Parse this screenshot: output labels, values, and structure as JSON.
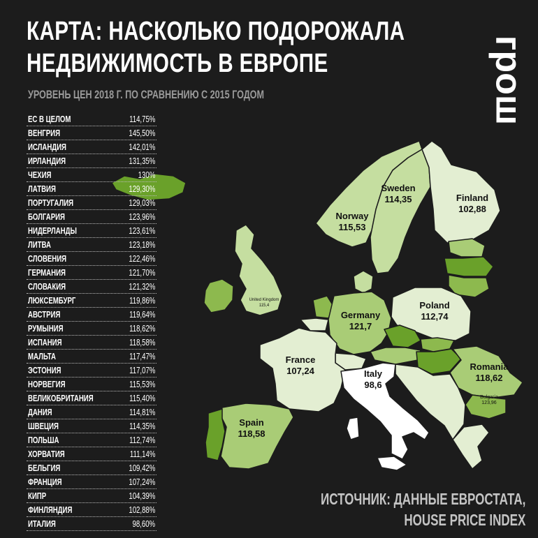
{
  "title_line1": "КАРТА: НАСКОЛЬКО ПОДОРОЖАЛА",
  "title_line2": "НЕДВИЖИМОСТЬ В ЕВРОПЕ",
  "subtitle": "УРОВЕНЬ ЦЕН 2018 Г. ПО СРАВНЕНИЮ С 2015 ГОДОМ",
  "logo": "грош",
  "source_line1": "ИСТОЧНИК: ДАННЫЕ ЕВРОСТАТА,",
  "source_line2": "HOUSE PRICE INDEX",
  "colors": {
    "background": "#1c1c1c",
    "highest": "#6aa12a",
    "high": "#8db94e",
    "upper": "#a9cc76",
    "medium": "#c5dea0",
    "low": "#e3eed2",
    "lowest": "#ffffff"
  },
  "table": [
    {
      "country": "ЕС В ЦЕЛОМ",
      "value": "114,75%"
    },
    {
      "country": "ВЕНГРИЯ",
      "value": "145,50%"
    },
    {
      "country": "ИСЛАНДИЯ",
      "value": "142,01%"
    },
    {
      "country": "ИРЛАНДИЯ",
      "value": "131,35%"
    },
    {
      "country": "ЧЕХИЯ",
      "value": "130%"
    },
    {
      "country": "ЛАТВИЯ",
      "value": "129,30%"
    },
    {
      "country": "ПОРТУГАЛИЯ",
      "value": "129,03%"
    },
    {
      "country": "БОЛГАРИЯ",
      "value": "123,96%"
    },
    {
      "country": "НИДЕРЛАНДЫ",
      "value": "123,61%"
    },
    {
      "country": "ЛИТВА",
      "value": "123,18%"
    },
    {
      "country": "СЛОВЕНИЯ",
      "value": "122,46%"
    },
    {
      "country": "ГЕРМАНИЯ",
      "value": "121,70%"
    },
    {
      "country": "СЛОВАКИЯ",
      "value": "121,32%"
    },
    {
      "country": "ЛЮКСЕМБУРГ",
      "value": "119,86%"
    },
    {
      "country": "АВСТРИЯ",
      "value": "119,64%"
    },
    {
      "country": "РУМЫНИЯ",
      "value": "118,62%"
    },
    {
      "country": "ИСПАНИЯ",
      "value": "118,58%"
    },
    {
      "country": "МАЛЬТА",
      "value": "117,47%"
    },
    {
      "country": "ЭСТОНИЯ",
      "value": "117,07%"
    },
    {
      "country": "НОРВЕГИЯ",
      "value": "115,53%"
    },
    {
      "country": "ВЕЛИКОБРИТАНИЯ",
      "value": "115,40%"
    },
    {
      "country": "ДАНИЯ",
      "value": "114,81%"
    },
    {
      "country": "ШВЕЦИЯ",
      "value": "114,35%"
    },
    {
      "country": "ПОЛЬША",
      "value": "112,74%"
    },
    {
      "country": "ХОРВАТИЯ",
      "value": "111,14%"
    },
    {
      "country": "БЕЛЬГИЯ",
      "value": "109,42%"
    },
    {
      "country": "ФРАНЦИЯ",
      "value": "107,24%"
    },
    {
      "country": "КИПР",
      "value": "104,39%"
    },
    {
      "country": "ФИНЛЯНДИЯ",
      "value": "102,88%"
    },
    {
      "country": "ИТАЛИЯ",
      "value": "98,60%"
    }
  ],
  "map_labels": {
    "sweden": {
      "name": "Sweden",
      "value": "114,35"
    },
    "finland": {
      "name": "Finland",
      "value": "102,88"
    },
    "norway": {
      "name": "Norway",
      "value": "115,53"
    },
    "uk": {
      "name": "United Kingdom",
      "value": "115,4"
    },
    "germany": {
      "name": "Germany",
      "value": "121,7"
    },
    "poland": {
      "name": "Poland",
      "value": "112,74"
    },
    "france": {
      "name": "France",
      "value": "107,24"
    },
    "italy": {
      "name": "Italy",
      "value": "98,6"
    },
    "romania": {
      "name": "Romania",
      "value": "118,62"
    },
    "bulgaria": {
      "name": "Bulgaria",
      "value": "123,96"
    },
    "spain": {
      "name": "Spain",
      "value": "118,58"
    }
  }
}
